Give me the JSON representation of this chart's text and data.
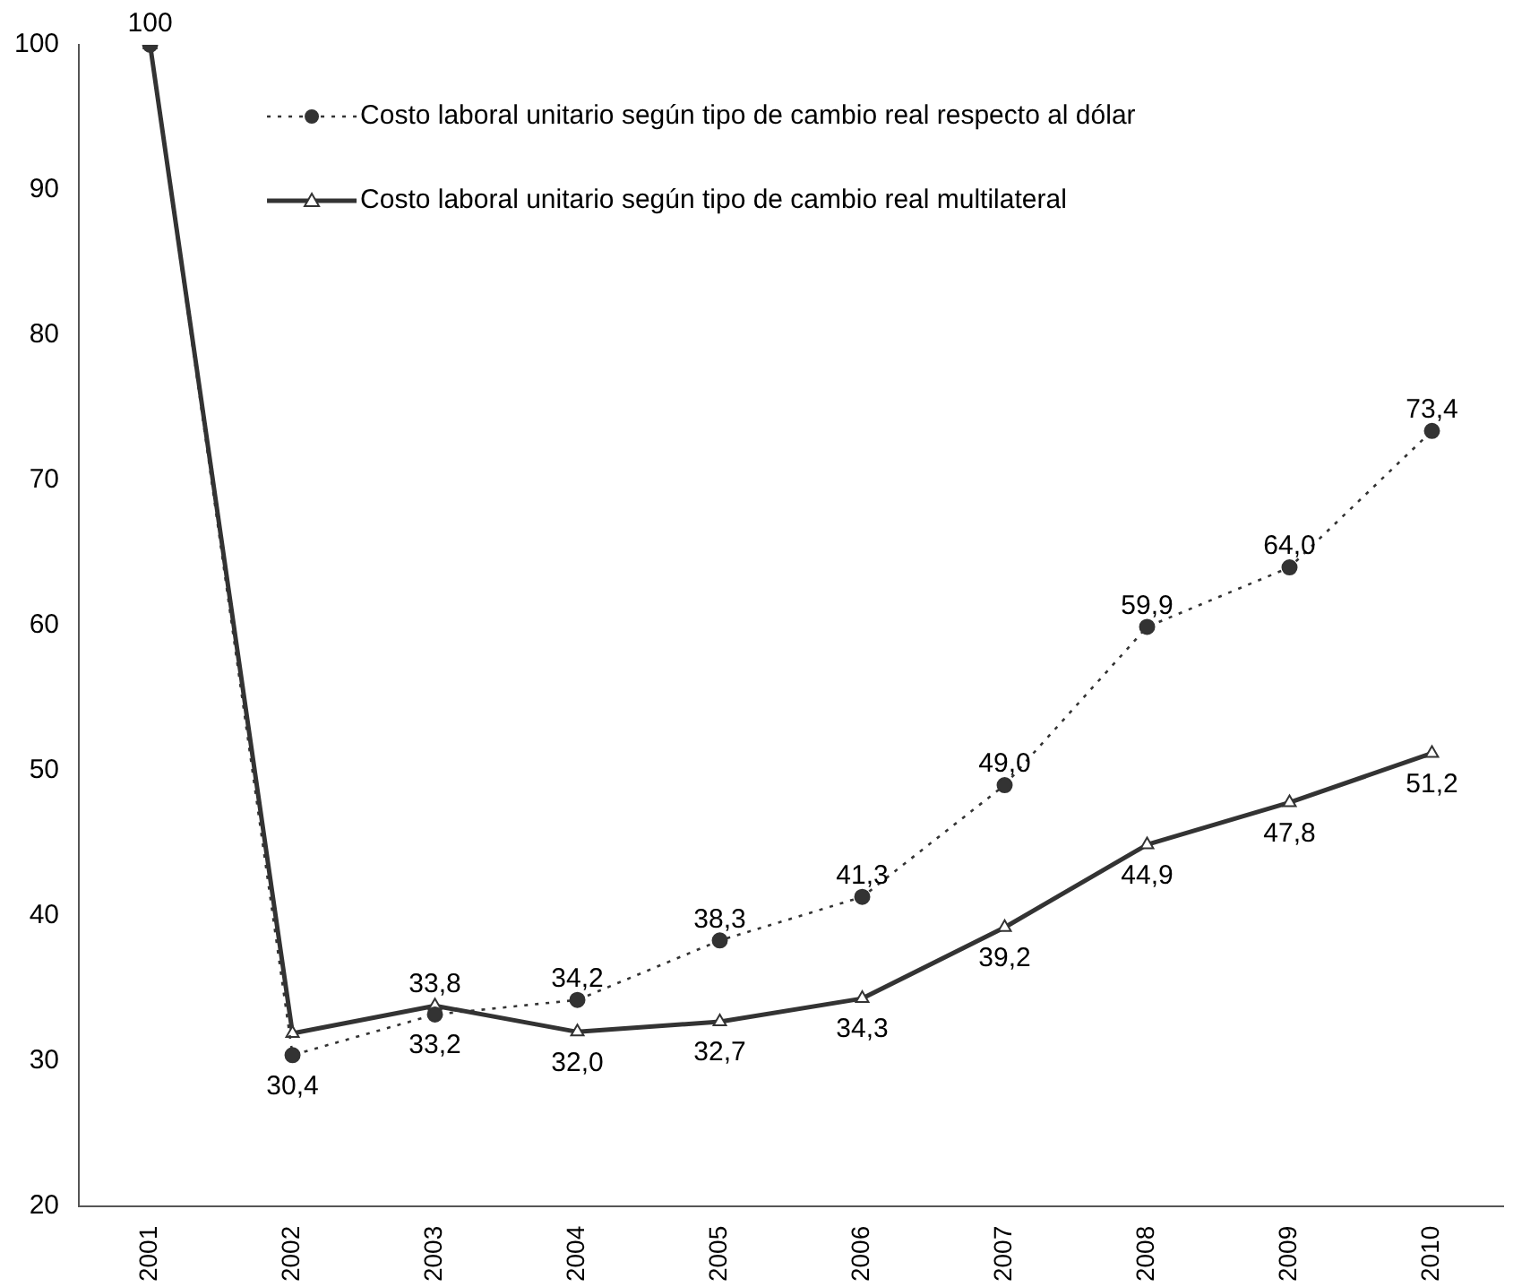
{
  "chart_data": {
    "type": "line",
    "categories": [
      "2001",
      "2002",
      "2003",
      "2004",
      "2005",
      "2006",
      "2007",
      "2008",
      "2009",
      "2010"
    ],
    "series": [
      {
        "name": "Costo laboral unitario según tipo de cambio real respecto al dólar",
        "color": "#333333",
        "marker": "circle",
        "line_style": "dotted",
        "values": [
          100,
          30.4,
          33.2,
          34.2,
          38.3,
          41.3,
          49.0,
          59.9,
          64.0,
          73.4
        ],
        "value_labels": [
          "100",
          "30,4",
          "33,2",
          "34,2",
          "38,3",
          "41,3",
          "49,0",
          "59,9",
          "64,0",
          "73,4"
        ]
      },
      {
        "name": "Costo laboral unitario según tipo de cambio real multilateral",
        "color": "#333333",
        "marker": "triangle",
        "line_style": "solid",
        "values": [
          100,
          31.9,
          33.8,
          32.0,
          32.7,
          34.3,
          39.2,
          44.9,
          47.8,
          51.2
        ],
        "value_labels": [
          null,
          null,
          "33,8",
          "32,0",
          "32,7",
          "34,3",
          "39,2",
          "44,9",
          "47,8",
          "51,2"
        ]
      }
    ],
    "ylim": [
      20,
      100
    ],
    "yticks": [
      20,
      30,
      40,
      50,
      60,
      70,
      80,
      90,
      100
    ],
    "grid": false,
    "legend": "top"
  }
}
